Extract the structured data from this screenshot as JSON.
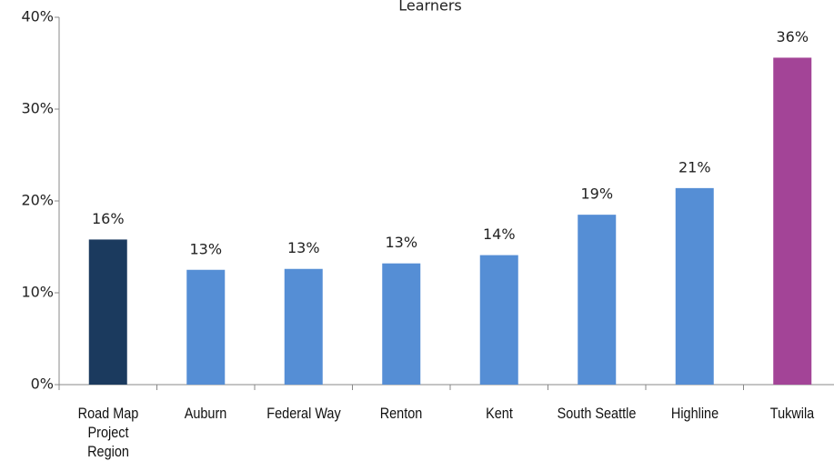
{
  "chart_data": {
    "type": "bar",
    "title": "Learners",
    "categories": [
      "Road Map Project Region",
      "Auburn",
      "Federal Way",
      "Renton",
      "Kent",
      "South Seattle",
      "Highline",
      "Tukwila"
    ],
    "values": [
      15.8,
      12.5,
      12.6,
      13.2,
      14.1,
      18.5,
      21.4,
      35.6
    ],
    "value_labels": [
      "16%",
      "13%",
      "13%",
      "13%",
      "14%",
      "19%",
      "21%",
      "36%"
    ],
    "colors": [
      "#1b3a5e",
      "#558ed5",
      "#558ed5",
      "#558ed5",
      "#558ed5",
      "#558ed5",
      "#558ed5",
      "#a34497"
    ],
    "ylim": [
      0,
      40
    ],
    "yticks": [
      {
        "value": 0,
        "label": "0%"
      },
      {
        "value": 10,
        "label": "10%"
      },
      {
        "value": 20,
        "label": "20%"
      },
      {
        "value": 30,
        "label": "30%"
      },
      {
        "value": 40,
        "label": "40%"
      }
    ]
  }
}
